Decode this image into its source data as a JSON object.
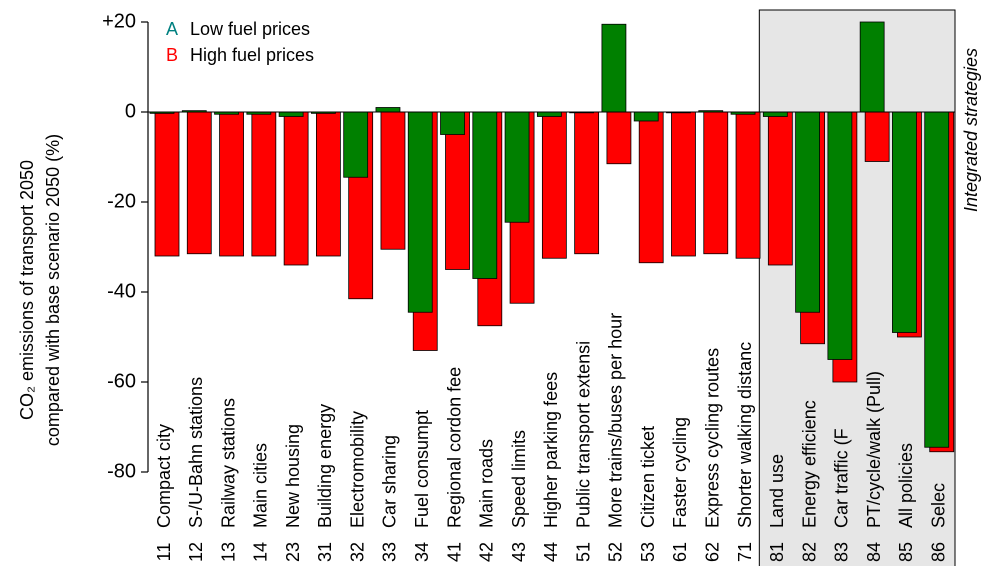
{
  "chart_data": {
    "type": "bar",
    "y_label_lines": [
      "CO₂ emissions of transport 2050",
      "compared with base scenario 2050 (%)"
    ],
    "annotation": "Integrated strategies",
    "codes": [
      "11",
      "12",
      "13",
      "14",
      "23",
      "31",
      "32",
      "33",
      "34",
      "41",
      "42",
      "43",
      "44",
      "51",
      "52",
      "53",
      "61",
      "62",
      "71",
      "81",
      "82",
      "83",
      "84",
      "85",
      "86"
    ],
    "categories": [
      "Compact city",
      "S-/U-Bahn stations",
      "Railway stations",
      "Main cities",
      "New housing",
      "Building energy",
      "Electromobility",
      "Car sharing",
      "Fuel consumpt",
      "Regional cordon fee",
      "Main roads",
      "Speed limits",
      "Higher parking fees",
      "Public transport extensi",
      "More trains/buses per hour",
      "Citizen ticket",
      "Faster cycling",
      "Express cycling routes",
      "Shorter walking distanc",
      "Land use",
      "Energy efficienc",
      "Car traffic (F",
      "PT/cycle/walk (Pull)",
      "All policies",
      "Selec"
    ],
    "series": [
      {
        "key": "A",
        "key_color": "#008080",
        "name": "Low fuel prices",
        "color": "#008000",
        "values": [
          -0.3,
          0.3,
          -0.5,
          -0.5,
          -1,
          -0.3,
          -14.5,
          1,
          -44.5,
          -5,
          -37,
          -24.5,
          -1,
          0,
          19.5,
          -2,
          0,
          0.3,
          -0.5,
          -1,
          -44.5,
          -55,
          20,
          -49,
          -74.5
        ]
      },
      {
        "key": "B",
        "key_color": "#ff0000",
        "name": "High fuel prices",
        "color": "#ff0000",
        "values": [
          -32,
          -31.5,
          -32,
          -32,
          -34,
          -32,
          -41.5,
          -30.5,
          -53,
          -35,
          -47.5,
          -42.5,
          -32.5,
          -31.5,
          -11.5,
          -33.5,
          -32,
          -31.5,
          -32.5,
          -34,
          -51.5,
          -60,
          -11,
          -50,
          -75.5
        ]
      }
    ],
    "highlight_from": 19,
    "ylim": [
      -80,
      20
    ],
    "yticks": [
      {
        "value": 20,
        "label": "+20"
      },
      0,
      -20,
      -40,
      -60,
      -80
    ]
  }
}
